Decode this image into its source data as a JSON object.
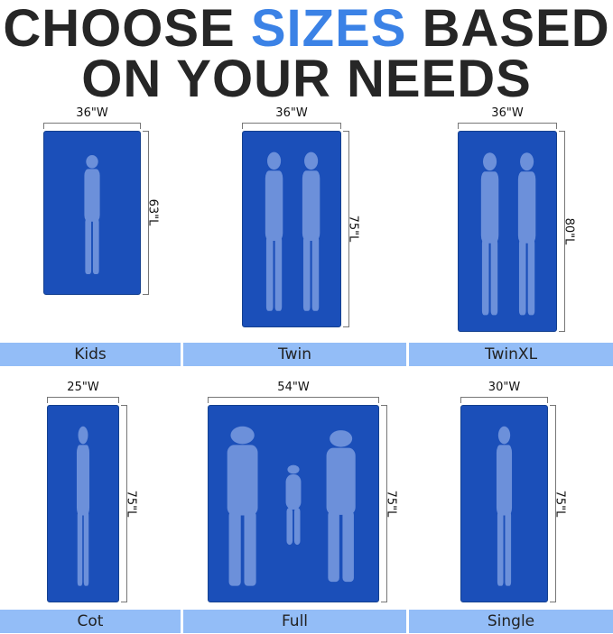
{
  "title": {
    "line1_a": "CHOOSE ",
    "line1_accent": "SIZES",
    "line1_b": " BASED",
    "line2": "ON YOUR NEEDS"
  },
  "colors": {
    "accent": "#3b82e6",
    "mat": "#1b4fb9",
    "silhouette": "#6c90da",
    "label_bar": "#93bdf7"
  },
  "sizes": [
    {
      "name": "Kids",
      "width": "36\"W",
      "length": "63\"L"
    },
    {
      "name": "Twin",
      "width": "36\"W",
      "length": "75\"L"
    },
    {
      "name": "TwinXL",
      "width": "36\"W",
      "length": "80\"L"
    },
    {
      "name": "Cot",
      "width": "25\"W",
      "length": "75\"L"
    },
    {
      "name": "Full",
      "width": "54\"W",
      "length": "75\"L"
    },
    {
      "name": "Single",
      "width": "30\"W",
      "length": "75\"L"
    }
  ]
}
